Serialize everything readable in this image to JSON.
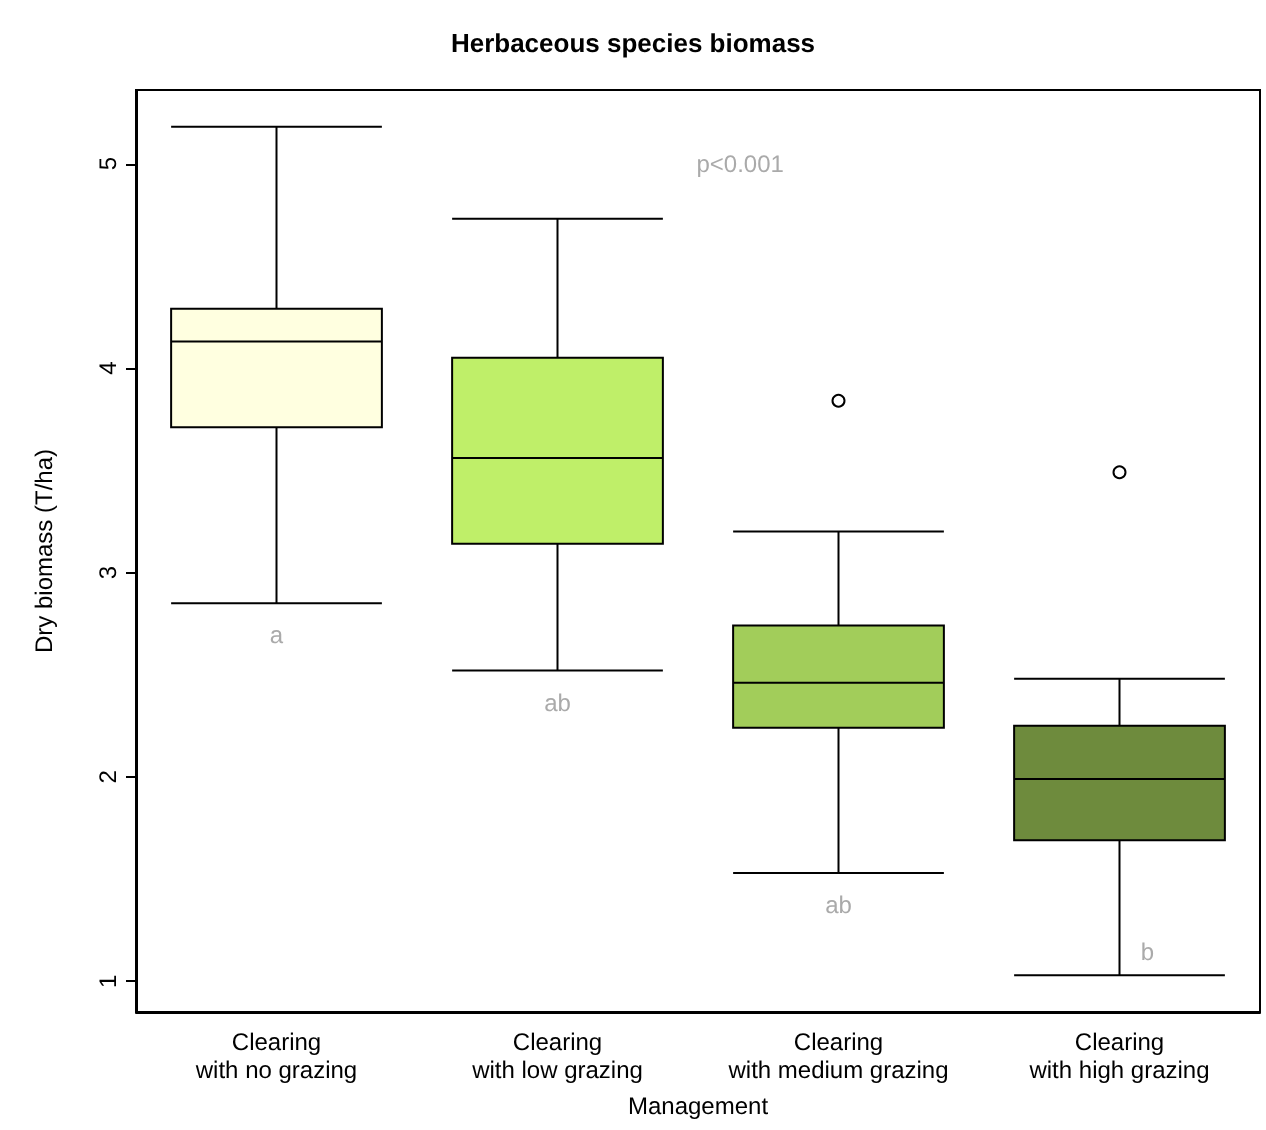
{
  "chart_data": {
    "type": "box",
    "title": "Herbaceous species biomass",
    "xlabel": "Management",
    "ylabel": "Dry biomass (T/ha)",
    "categories": [
      "Clearing\nwith no grazing",
      "Clearing\nwith low grazing",
      "Clearing\nwith medium grazing",
      "Clearing\nwith high grazing"
    ],
    "boxes": [
      {
        "low": 2.85,
        "q1": 3.71,
        "median": 4.13,
        "q3": 4.29,
        "high": 5.18
      },
      {
        "low": 2.52,
        "q1": 3.14,
        "median": 3.56,
        "q3": 4.05,
        "high": 4.73
      },
      {
        "low": 1.53,
        "q1": 2.24,
        "median": 2.46,
        "q3": 2.74,
        "high": 3.2,
        "outliers": [
          3.84
        ]
      },
      {
        "low": 1.03,
        "q1": 1.69,
        "median": 1.99,
        "q3": 2.25,
        "high": 2.48,
        "outliers": [
          3.49
        ]
      }
    ],
    "colors": [
      "#ffffe0",
      "#bfef69",
      "#a2cd5a",
      "#6e8b3d"
    ],
    "ylim": [
      0.85,
      5.36
    ],
    "yticks": [
      1,
      2,
      3,
      4,
      5
    ],
    "grid": false,
    "annotations": [
      "p<0.001",
      "a",
      "ab",
      "ab",
      "b"
    ]
  }
}
